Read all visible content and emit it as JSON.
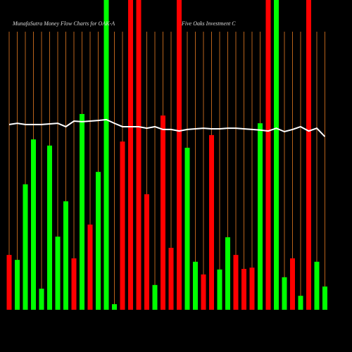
{
  "chart_data": {
    "type": "bar",
    "title": "MunafaSutra  Money Flow  Charts for OAK-A",
    "subtitle": "Five  Oaks Investment C",
    "categories": [
      null,
      null,
      null,
      null,
      null,
      null,
      null,
      null,
      null,
      null,
      null,
      null,
      null,
      null,
      null,
      null,
      null,
      null,
      null,
      null,
      null,
      null,
      null,
      null,
      null,
      null,
      null,
      null,
      null,
      null,
      null,
      null,
      null,
      null,
      null,
      null,
      null,
      null,
      null,
      null
    ],
    "values": [
      17.7,
      16.1,
      40.5,
      55,
      6.8,
      53,
      23.6,
      35,
      16.6,
      63.2,
      27.5,
      44.5,
      100,
      1.8,
      54.3,
      100,
      100,
      37.3,
      8,
      62.7,
      20,
      100,
      52.3,
      15.5,
      11.4,
      56.4,
      13,
      23.4,
      17.7,
      13.2,
      13.6,
      60.2,
      100,
      100,
      10.5,
      16.6,
      4.5,
      100,
      15.5,
      7.5
    ],
    "colors": [
      "#ff0000",
      "#00ff00",
      "#00ff00",
      "#00ff00",
      "#00ff00",
      "#00ff00",
      "#00ff00",
      "#00ff00",
      "#ff0000",
      "#00ff00",
      "#ff0000",
      "#00ff00",
      "#00ff00",
      "#00ff00",
      "#ff0000",
      "#ff0000",
      "#ff0000",
      "#ff0000",
      "#00ff00",
      "#ff0000",
      "#ff0000",
      "#ff0000",
      "#00ff00",
      "#00ff00",
      "#ff0000",
      "#ff0000",
      "#00ff00",
      "#00ff00",
      "#ff0000",
      "#ff0000",
      "#ff0000",
      "#00ff00",
      "#ff0000",
      "#00ff00",
      "#00ff00",
      "#ff0000",
      "#00ff00",
      "#ff0000",
      "#00ff00",
      "#00ff00"
    ],
    "line": {
      "color": "#ffffff",
      "values": [
        59.8,
        60.2,
        59.8,
        59.8,
        59.8,
        60,
        60.2,
        59.1,
        60.9,
        60.7,
        60.9,
        61.1,
        61.4,
        60.2,
        59.1,
        59.1,
        59.1,
        58.6,
        59.1,
        58.2,
        58.2,
        57.7,
        58.2,
        58.4,
        58.6,
        58.4,
        58.4,
        58.6,
        58.6,
        58.4,
        58.2,
        58,
        57.7,
        58.6,
        57.5,
        58.2,
        59.1,
        57.7,
        58.6,
        55.9
      ]
    },
    "ylim": [
      0,
      100
    ],
    "grid": true
  }
}
